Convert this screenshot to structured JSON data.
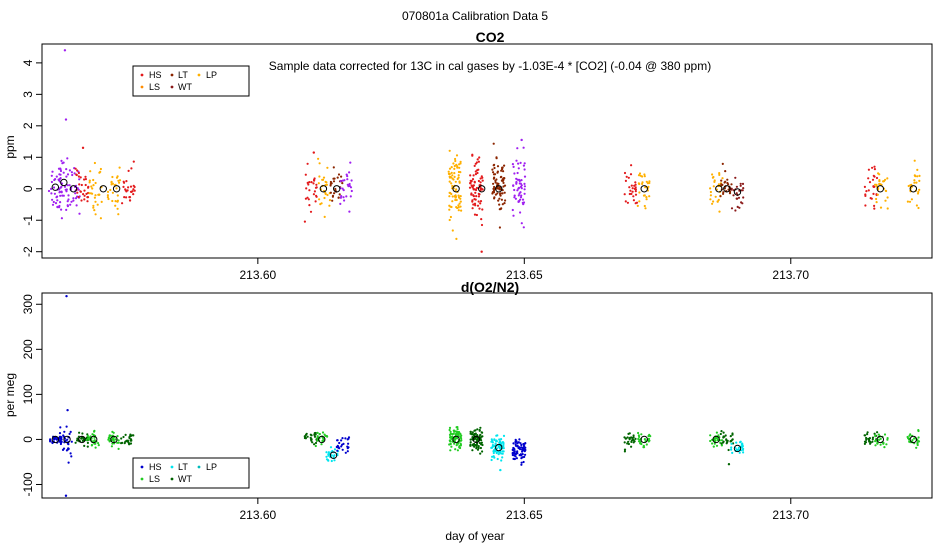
{
  "title": "070801a   Calibration Data 5",
  "xlabel": "day of year",
  "colors": {
    "HS": "#e31a1c",
    "LS": "#ff8c00",
    "LT": "#8b2500",
    "WT": "#8b1a1a",
    "LP": "#ffb000",
    "violet": "#a020f0",
    "o2_HS": "#0000cd",
    "o2_LS": "#22cc22",
    "o2_LT": "#00e5ee",
    "o2_WT": "#006400",
    "o2_LP": "#00bbbb"
  },
  "legend_labels": [
    "HS",
    "LT",
    "LP",
    "LS",
    "WT"
  ],
  "chart_data": [
    {
      "type": "scatter",
      "title": "CO2",
      "ylabel": "ppm",
      "annotation": "Sample data corrected for 13C in cal gases by -1.03E-4 * [CO2] (-0.04 @ 380 ppm)",
      "xlim": [
        213.5595,
        213.7265
      ],
      "ylim": [
        -2.2,
        4.6
      ],
      "xticks": [
        213.6,
        213.65,
        213.7
      ],
      "xtick_labels": [
        "213.60",
        "213.65",
        "213.70"
      ],
      "yticks": [
        -2,
        -1,
        0,
        1,
        2,
        3,
        4
      ],
      "ytick_labels": [
        "-2",
        "-1",
        "0",
        "1",
        "2",
        "3",
        "4"
      ],
      "legend_position": "top-left",
      "clusters": [
        {
          "x": 213.562,
          "mean": 0.05,
          "sd": 0.4,
          "n": 34,
          "color": "violet"
        },
        {
          "x": 213.5636,
          "mean": 0.15,
          "sd": 0.45,
          "n": 32,
          "color": "violet"
        },
        {
          "x": 213.5654,
          "mean": 0.0,
          "sd": 0.35,
          "n": 30,
          "color": "violet"
        },
        {
          "x": 213.567,
          "mean": 0.0,
          "sd": 0.3,
          "n": 30,
          "color": "HS"
        },
        {
          "x": 213.5696,
          "mean": -0.05,
          "sd": 0.4,
          "n": 30,
          "color": "LP"
        },
        {
          "x": 213.573,
          "mean": 0.0,
          "sd": 0.35,
          "n": 28,
          "color": "LP"
        },
        {
          "x": 213.5757,
          "mean": 0.0,
          "sd": 0.3,
          "n": 28,
          "color": "HS"
        },
        {
          "x": 213.61,
          "mean": 0.0,
          "sd": 0.3,
          "n": 26,
          "color": "HS"
        },
        {
          "x": 213.6125,
          "mean": 0.0,
          "sd": 0.35,
          "n": 26,
          "color": "LP"
        },
        {
          "x": 213.6148,
          "mean": 0.0,
          "sd": 0.3,
          "n": 26,
          "color": "LT"
        },
        {
          "x": 213.6165,
          "mean": 0.0,
          "sd": 0.3,
          "n": 26,
          "color": "violet"
        },
        {
          "x": 213.637,
          "mean": 0.0,
          "sd": 0.55,
          "n": 80,
          "color": "LP"
        },
        {
          "x": 213.641,
          "mean": 0.0,
          "sd": 0.45,
          "n": 80,
          "color": "HS"
        },
        {
          "x": 213.6452,
          "mean": 0.05,
          "sd": 0.45,
          "n": 80,
          "color": "LT"
        },
        {
          "x": 213.649,
          "mean": 0.1,
          "sd": 0.5,
          "n": 60,
          "color": "violet"
        },
        {
          "x": 213.67,
          "mean": 0.0,
          "sd": 0.3,
          "n": 28,
          "color": "HS"
        },
        {
          "x": 213.6725,
          "mean": 0.0,
          "sd": 0.3,
          "n": 28,
          "color": "LP"
        },
        {
          "x": 213.686,
          "mean": 0.0,
          "sd": 0.3,
          "n": 28,
          "color": "LP"
        },
        {
          "x": 213.688,
          "mean": 0.0,
          "sd": 0.25,
          "n": 26,
          "color": "LT"
        },
        {
          "x": 213.69,
          "mean": -0.1,
          "sd": 0.3,
          "n": 26,
          "color": "WT"
        },
        {
          "x": 213.715,
          "mean": 0.0,
          "sd": 0.3,
          "n": 26,
          "color": "HS"
        },
        {
          "x": 213.717,
          "mean": 0.0,
          "sd": 0.3,
          "n": 26,
          "color": "LP"
        },
        {
          "x": 213.723,
          "mean": 0.0,
          "sd": 0.35,
          "n": 26,
          "color": "LP"
        }
      ],
      "means": [
        {
          "x": 213.562,
          "y": 0.05
        },
        {
          "x": 213.5636,
          "y": 0.2
        },
        {
          "x": 213.5654,
          "y": 0.0
        },
        {
          "x": 213.571,
          "y": 0.0
        },
        {
          "x": 213.5735,
          "y": 0.0
        },
        {
          "x": 213.6123,
          "y": 0.0
        },
        {
          "x": 213.6148,
          "y": 0.0
        },
        {
          "x": 213.6372,
          "y": 0.0
        },
        {
          "x": 213.642,
          "y": 0.0
        },
        {
          "x": 213.6452,
          "y": 0.0
        },
        {
          "x": 213.6725,
          "y": 0.0
        },
        {
          "x": 213.6865,
          "y": 0.0
        },
        {
          "x": 213.688,
          "y": 0.0
        },
        {
          "x": 213.69,
          "y": -0.1
        },
        {
          "x": 213.7168,
          "y": 0.0
        },
        {
          "x": 213.723,
          "y": 0.0
        }
      ],
      "outliers": [
        {
          "x": 213.5638,
          "y": 4.4,
          "color": "violet"
        },
        {
          "x": 213.564,
          "y": 2.2,
          "color": "violet"
        },
        {
          "x": 213.5672,
          "y": 1.3,
          "color": "HS"
        },
        {
          "x": 213.6105,
          "y": 1.15,
          "color": "HS"
        },
        {
          "x": 213.642,
          "y": -2.0,
          "color": "HS"
        },
        {
          "x": 213.6495,
          "y": 1.55,
          "color": "violet"
        }
      ]
    },
    {
      "type": "scatter",
      "title": "d(O2/N2)",
      "ylabel": "per meg",
      "xlim": [
        213.5595,
        213.7265
      ],
      "ylim": [
        -130,
        325
      ],
      "xticks": [
        213.6,
        213.65,
        213.7
      ],
      "xtick_labels": [
        "213.60",
        "213.65",
        "213.70"
      ],
      "yticks": [
        -100,
        0,
        100,
        200,
        300
      ],
      "ytick_labels": [
        "-100",
        "0",
        "100",
        "200",
        "300"
      ],
      "legend_position": "bottom-left",
      "clusters": [
        {
          "x": 213.562,
          "mean": 0,
          "sd": 6,
          "n": 30,
          "color": "o2_HS"
        },
        {
          "x": 213.564,
          "mean": 0,
          "sd": 18,
          "n": 32,
          "color": "o2_HS"
        },
        {
          "x": 213.567,
          "mean": 0,
          "sd": 8,
          "n": 30,
          "color": "o2_WT"
        },
        {
          "x": 213.569,
          "mean": 0,
          "sd": 8,
          "n": 30,
          "color": "o2_LS"
        },
        {
          "x": 213.573,
          "mean": 0,
          "sd": 8,
          "n": 28,
          "color": "o2_LS"
        },
        {
          "x": 213.5755,
          "mean": 0,
          "sd": 8,
          "n": 28,
          "color": "o2_WT"
        },
        {
          "x": 213.61,
          "mean": 0,
          "sd": 8,
          "n": 26,
          "color": "o2_WT"
        },
        {
          "x": 213.612,
          "mean": 0,
          "sd": 8,
          "n": 26,
          "color": "o2_LS"
        },
        {
          "x": 213.614,
          "mean": -35,
          "sd": 8,
          "n": 26,
          "color": "o2_LT"
        },
        {
          "x": 213.616,
          "mean": -12,
          "sd": 12,
          "n": 26,
          "color": "o2_HS"
        },
        {
          "x": 213.637,
          "mean": 0,
          "sd": 12,
          "n": 80,
          "color": "o2_LS"
        },
        {
          "x": 213.641,
          "mean": 0,
          "sd": 12,
          "n": 80,
          "color": "o2_WT"
        },
        {
          "x": 213.645,
          "mean": -18,
          "sd": 12,
          "n": 80,
          "color": "o2_LT"
        },
        {
          "x": 213.649,
          "mean": -25,
          "sd": 12,
          "n": 70,
          "color": "o2_HS"
        },
        {
          "x": 213.67,
          "mean": 0,
          "sd": 8,
          "n": 28,
          "color": "o2_WT"
        },
        {
          "x": 213.6725,
          "mean": 0,
          "sd": 8,
          "n": 28,
          "color": "o2_LS"
        },
        {
          "x": 213.686,
          "mean": 0,
          "sd": 8,
          "n": 28,
          "color": "o2_LS"
        },
        {
          "x": 213.688,
          "mean": 0,
          "sd": 8,
          "n": 26,
          "color": "o2_WT"
        },
        {
          "x": 213.69,
          "mean": -20,
          "sd": 8,
          "n": 26,
          "color": "o2_LT"
        },
        {
          "x": 213.715,
          "mean": 0,
          "sd": 8,
          "n": 26,
          "color": "o2_WT"
        },
        {
          "x": 213.717,
          "mean": 0,
          "sd": 8,
          "n": 26,
          "color": "o2_LS"
        },
        {
          "x": 213.723,
          "mean": 0,
          "sd": 8,
          "n": 26,
          "color": "o2_LS"
        }
      ],
      "means": [
        {
          "x": 213.562,
          "y": 0
        },
        {
          "x": 213.5642,
          "y": 0
        },
        {
          "x": 213.567,
          "y": 0
        },
        {
          "x": 213.5692,
          "y": 0
        },
        {
          "x": 213.573,
          "y": 0
        },
        {
          "x": 213.612,
          "y": 0
        },
        {
          "x": 213.6142,
          "y": -35
        },
        {
          "x": 213.6372,
          "y": 0
        },
        {
          "x": 213.641,
          "y": 0
        },
        {
          "x": 213.6452,
          "y": -18
        },
        {
          "x": 213.6725,
          "y": 0
        },
        {
          "x": 213.686,
          "y": 0
        },
        {
          "x": 213.69,
          "y": -20
        },
        {
          "x": 213.7168,
          "y": 0
        },
        {
          "x": 213.723,
          "y": 0
        }
      ],
      "outliers": [
        {
          "x": 213.5641,
          "y": 318,
          "color": "o2_HS"
        },
        {
          "x": 213.5643,
          "y": 65,
          "color": "o2_HS"
        },
        {
          "x": 213.564,
          "y": -125,
          "color": "o2_HS"
        },
        {
          "x": 213.6455,
          "y": -68,
          "color": "o2_LT"
        },
        {
          "x": 213.6884,
          "y": -55,
          "color": "o2_WT"
        }
      ]
    }
  ]
}
